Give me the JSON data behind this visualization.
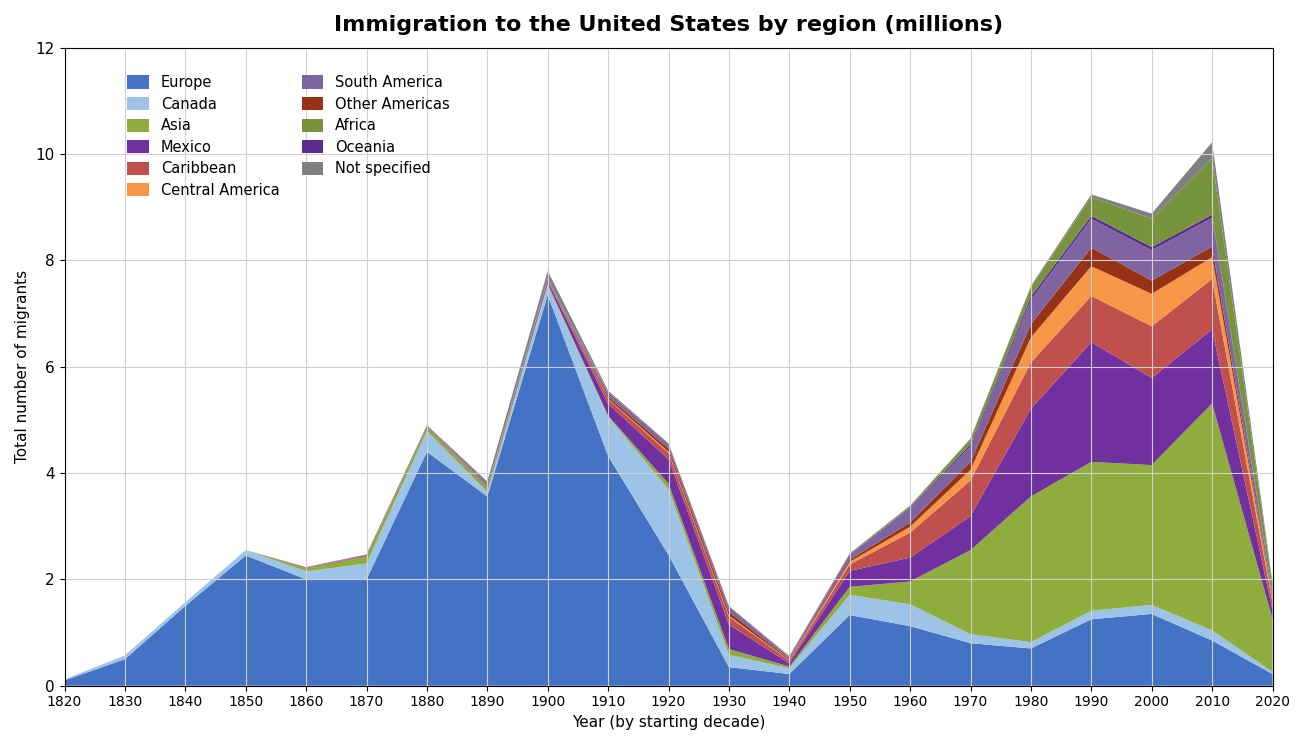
{
  "title": "Immigration to the United States by region (millions)",
  "xlabel": "Year (by starting decade)",
  "ylabel": "Total number of migrants",
  "years": [
    1820,
    1830,
    1840,
    1850,
    1860,
    1870,
    1880,
    1890,
    1900,
    1910,
    1920,
    1930,
    1940,
    1950,
    1960,
    1970,
    1980,
    1990,
    2000,
    2010,
    2020
  ],
  "regions": {
    "Europe": [
      0.1,
      0.5,
      1.5,
      2.45,
      2.0,
      2.0,
      4.4,
      3.56,
      7.35,
      4.32,
      2.46,
      0.35,
      0.22,
      1.33,
      1.12,
      0.8,
      0.7,
      1.25,
      1.35,
      0.85,
      0.22
    ],
    "Canada": [
      0.02,
      0.07,
      0.07,
      0.1,
      0.15,
      0.3,
      0.39,
      0.08,
      0.18,
      0.74,
      1.23,
      0.23,
      0.11,
      0.38,
      0.41,
      0.17,
      0.12,
      0.16,
      0.17,
      0.19,
      0.04
    ],
    "Asia": [
      0.0,
      0.0,
      0.0,
      0.0,
      0.06,
      0.13,
      0.07,
      0.06,
      0.03,
      0.02,
      0.11,
      0.11,
      0.03,
      0.15,
      0.43,
      1.58,
      2.74,
      2.8,
      2.63,
      4.27,
      1.0
    ],
    "Mexico": [
      0.0,
      0.0,
      0.0,
      0.0,
      0.01,
      0.01,
      0.01,
      0.01,
      0.05,
      0.22,
      0.46,
      0.46,
      0.06,
      0.3,
      0.45,
      0.64,
      1.65,
      2.25,
      1.64,
      1.39,
      0.16
    ],
    "Caribbean": [
      0.0,
      0.0,
      0.0,
      0.0,
      0.01,
      0.01,
      0.01,
      0.01,
      0.01,
      0.09,
      0.12,
      0.15,
      0.05,
      0.12,
      0.47,
      0.67,
      0.87,
      0.87,
      0.97,
      0.95,
      0.15
    ],
    "Central America": [
      0.0,
      0.0,
      0.0,
      0.0,
      0.0,
      0.0,
      0.0,
      0.0,
      0.0,
      0.01,
      0.02,
      0.02,
      0.01,
      0.05,
      0.11,
      0.2,
      0.47,
      0.56,
      0.61,
      0.41,
      0.05
    ],
    "Other Americas": [
      0.0,
      0.0,
      0.0,
      0.0,
      0.0,
      0.01,
      0.01,
      0.01,
      0.01,
      0.04,
      0.06,
      0.07,
      0.02,
      0.04,
      0.08,
      0.15,
      0.25,
      0.35,
      0.25,
      0.2,
      0.03
    ],
    "South America": [
      0.0,
      0.0,
      0.0,
      0.0,
      0.0,
      0.01,
      0.01,
      0.01,
      0.02,
      0.05,
      0.06,
      0.07,
      0.03,
      0.09,
      0.26,
      0.29,
      0.46,
      0.54,
      0.57,
      0.54,
      0.08
    ],
    "Oceania": [
      0.0,
      0.0,
      0.0,
      0.0,
      0.0,
      0.0,
      0.0,
      0.0,
      0.0,
      0.02,
      0.02,
      0.02,
      0.01,
      0.01,
      0.02,
      0.04,
      0.06,
      0.06,
      0.06,
      0.06,
      0.01
    ],
    "Africa": [
      0.0,
      0.0,
      0.0,
      0.0,
      0.0,
      0.0,
      0.0,
      0.0,
      0.0,
      0.01,
      0.01,
      0.01,
      0.01,
      0.01,
      0.03,
      0.1,
      0.18,
      0.35,
      0.53,
      1.06,
      0.15
    ],
    "Not specified": [
      0.0,
      0.0,
      0.0,
      0.0,
      0.0,
      0.0,
      0.0,
      0.1,
      0.15,
      0.03,
      0.01,
      0.01,
      0.01,
      0.01,
      0.01,
      0.01,
      0.02,
      0.05,
      0.1,
      0.3,
      0.05
    ]
  },
  "stack_order": [
    "Europe",
    "Canada",
    "Asia",
    "Mexico",
    "Caribbean",
    "Central America",
    "Other Americas",
    "South America",
    "Oceania",
    "Africa",
    "Not specified"
  ],
  "colors": {
    "Europe": "#4472C4",
    "Canada": "#9DC3E6",
    "Asia": "#8FAD3C",
    "Mexico": "#7030A0",
    "Caribbean": "#C0504D",
    "Central America": "#F79646",
    "Other Americas": "#963216",
    "South America": "#8064A2",
    "Oceania": "#5B2C8D",
    "Africa": "#77933C",
    "Not specified": "#808080"
  },
  "legend_left": [
    "Europe",
    "Asia",
    "Caribbean",
    "South America",
    "Africa",
    "Not specified"
  ],
  "legend_right": [
    "Canada",
    "Mexico",
    "Central America",
    "Other Americas",
    "Oceania"
  ],
  "ylim": [
    0,
    12
  ],
  "xlim": [
    1820,
    2020
  ],
  "background_color": "#FFFFFF",
  "grid_color": "#D0D0D0"
}
